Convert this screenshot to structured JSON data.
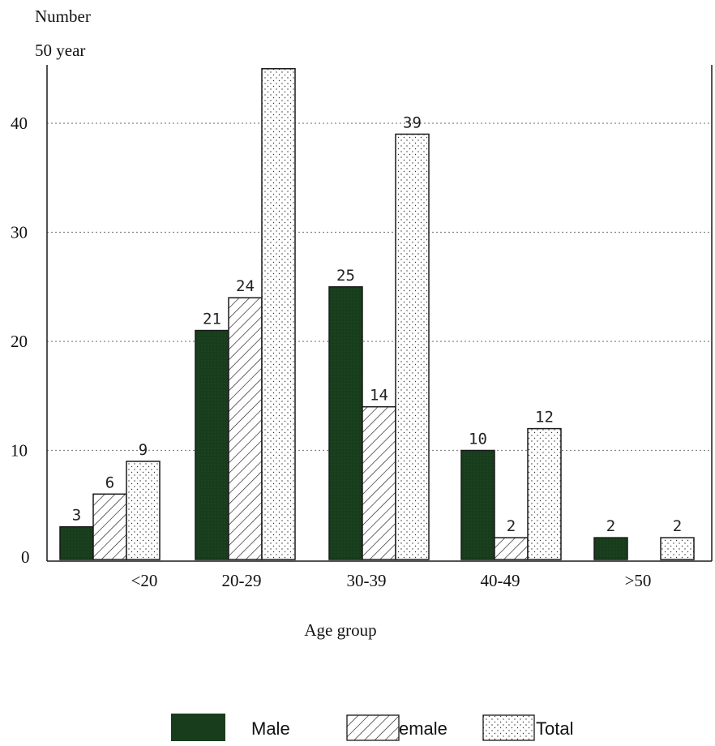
{
  "chart_data": {
    "type": "bar",
    "ylabel_line1": "Number",
    "ylabel_line2": "50 year",
    "xlabel": "Age group",
    "categories": [
      "<20",
      "20-29",
      "30-39",
      "40-49",
      ">50"
    ],
    "series": [
      {
        "name": "Male",
        "values": [
          3,
          21,
          25,
          10,
          2
        ],
        "labels": [
          "3",
          "21",
          "25",
          "10",
          "2"
        ]
      },
      {
        "name": "emale",
        "values": [
          6,
          24,
          14,
          2,
          0
        ],
        "labels": [
          "6",
          "24",
          "14",
          "2",
          ""
        ]
      },
      {
        "name": "Total",
        "values": [
          9,
          45,
          39,
          12,
          2
        ],
        "labels": [
          "9",
          "",
          "39",
          "12",
          "2"
        ]
      }
    ],
    "yticks": [
      0,
      10,
      20,
      30,
      40
    ],
    "ylim": [
      0,
      45
    ],
    "grid": "dotted horizontal",
    "legend_position": "bottom-center",
    "colors": {
      "male": "#173d1c",
      "stroke": "#1a1a1a",
      "grid": "#888888"
    }
  }
}
